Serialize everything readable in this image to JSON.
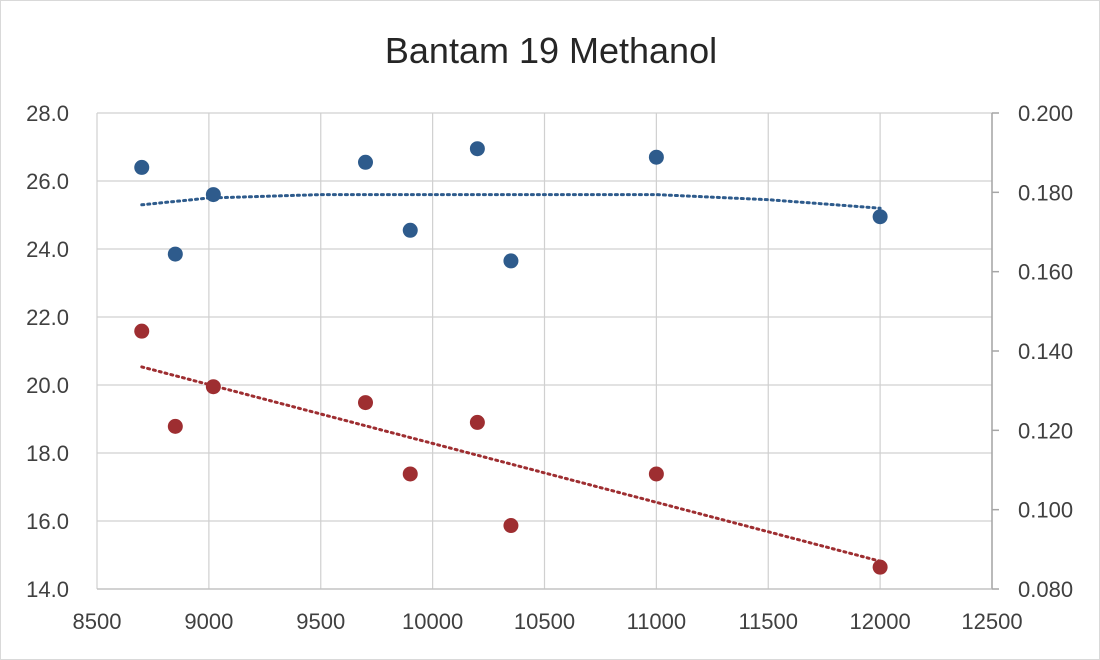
{
  "chart_data": {
    "type": "scatter",
    "title": "Bantam 19 Methanol",
    "xlim": [
      8500,
      12500
    ],
    "ylim_left": [
      14.0,
      28.0
    ],
    "ylim_right": [
      0.08,
      0.2
    ],
    "x_ticks": [
      "8500",
      "9000",
      "9500",
      "10000",
      "10500",
      "11000",
      "11500",
      "12000",
      "12500"
    ],
    "y_left_ticks": [
      "14.0",
      "16.0",
      "18.0",
      "20.0",
      "22.0",
      "24.0",
      "26.0",
      "28.0"
    ],
    "y_right_ticks": [
      "0.080",
      "0.100",
      "0.120",
      "0.140",
      "0.160",
      "0.180",
      "0.200"
    ],
    "grid": true,
    "legend": "none",
    "series": [
      {
        "axis": "left",
        "color": "#2e5b8c",
        "trendline": "polynomial",
        "trend": [
          [
            8700,
            25.3
          ],
          [
            9000,
            25.5
          ],
          [
            9500,
            25.6
          ],
          [
            10000,
            25.6
          ],
          [
            10500,
            25.6
          ],
          [
            11000,
            25.6
          ],
          [
            11500,
            25.45
          ],
          [
            12000,
            25.2
          ]
        ],
        "points": [
          {
            "x": 8700,
            "y": 26.4
          },
          {
            "x": 8850,
            "y": 23.85
          },
          {
            "x": 9020,
            "y": 25.6
          },
          {
            "x": 9700,
            "y": 26.55
          },
          {
            "x": 9900,
            "y": 24.55
          },
          {
            "x": 10200,
            "y": 26.95
          },
          {
            "x": 10350,
            "y": 23.65
          },
          {
            "x": 11000,
            "y": 26.7
          },
          {
            "x": 12000,
            "y": 24.95
          }
        ]
      },
      {
        "axis": "right",
        "color": "#9e2e31",
        "trendline": "linear",
        "trend": [
          [
            8700,
            0.136
          ],
          [
            12000,
            0.087
          ]
        ],
        "points": [
          {
            "x": 8700,
            "y": 0.145
          },
          {
            "x": 8850,
            "y": 0.121
          },
          {
            "x": 9020,
            "y": 0.131
          },
          {
            "x": 9700,
            "y": 0.127
          },
          {
            "x": 9900,
            "y": 0.109
          },
          {
            "x": 10200,
            "y": 0.122
          },
          {
            "x": 10350,
            "y": 0.096
          },
          {
            "x": 11000,
            "y": 0.109
          },
          {
            "x": 12000,
            "y": 0.0855
          }
        ]
      }
    ]
  }
}
